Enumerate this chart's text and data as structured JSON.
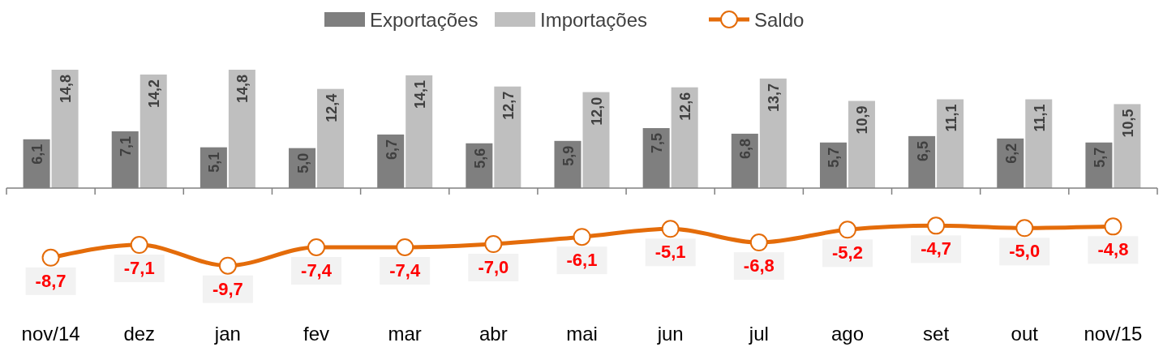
{
  "chart_data": {
    "type": "bar",
    "categories": [
      "nov/14",
      "dez",
      "jan",
      "fev",
      "mar",
      "abr",
      "mai",
      "jun",
      "jul",
      "ago",
      "set",
      "out",
      "nov/15"
    ],
    "series": [
      {
        "name": "Exportações",
        "color": "#7f7f7f",
        "values": [
          6.1,
          7.1,
          5.1,
          5.0,
          6.7,
          5.6,
          5.9,
          7.5,
          6.8,
          5.7,
          6.5,
          6.2,
          5.7
        ],
        "value_labels": [
          "6,1",
          "7,1",
          "5,1",
          "5,0",
          "6,7",
          "5,6",
          "5,9",
          "7,5",
          "6,8",
          "5,7",
          "6,5",
          "6,2",
          "5,7"
        ]
      },
      {
        "name": "Importações",
        "color": "#bfbfbf",
        "values": [
          14.8,
          14.2,
          14.8,
          12.4,
          14.1,
          12.7,
          12.0,
          12.6,
          13.7,
          10.9,
          11.1,
          11.1,
          10.5
        ],
        "value_labels": [
          "14,8",
          "14,2",
          "14,8",
          "12,4",
          "14,1",
          "12,7",
          "12,0",
          "12,6",
          "13,7",
          "10,9",
          "11,1",
          "11,1",
          "10,5"
        ]
      },
      {
        "name": "Saldo",
        "type": "line",
        "color": "#e46c0a",
        "marker": "circle",
        "values": [
          -8.7,
          -7.1,
          -9.7,
          -7.4,
          -7.4,
          -7.0,
          -6.1,
          -5.1,
          -6.8,
          -5.2,
          -4.7,
          -5.0,
          -4.8
        ],
        "value_labels": [
          "-8,7",
          "-7,1",
          "-9,7",
          "-7,4",
          "-7,4",
          "-7,0",
          "-6,1",
          "-5,1",
          "-6,8",
          "-5,2",
          "-4,7",
          "-5,0",
          "-4,8"
        ]
      }
    ],
    "legend": "top",
    "grid": false
  }
}
